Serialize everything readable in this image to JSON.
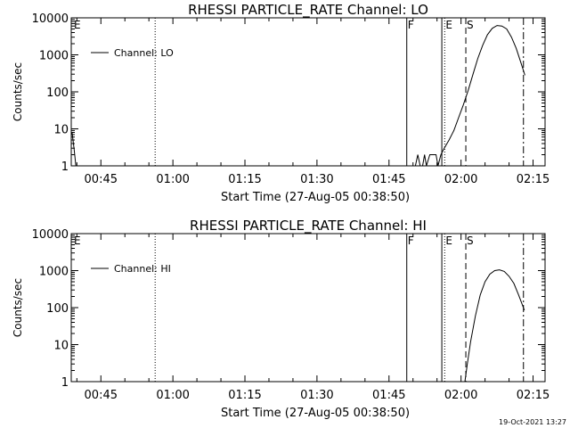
{
  "footer_timestamp": "19-Oct-2021 13:27",
  "chart_data": [
    {
      "type": "line",
      "title": "RHESSI PARTICLE_RATE Channel: LO",
      "xlabel": "Start Time (27-Aug-05 00:38:50)",
      "ylabel": "Counts/sec",
      "yscale": "log",
      "ylim": [
        1,
        10000
      ],
      "xlim_minutes": [
        38.83,
        137.5
      ],
      "x_ticks": [
        {
          "m": 45,
          "label": "00:45"
        },
        {
          "m": 60,
          "label": "01:00"
        },
        {
          "m": 75,
          "label": "01:15"
        },
        {
          "m": 90,
          "label": "01:30"
        },
        {
          "m": 105,
          "label": "01:45"
        },
        {
          "m": 120,
          "label": "02:00"
        },
        {
          "m": 135,
          "label": "02:15"
        }
      ],
      "y_ticks": [
        {
          "v": 1,
          "label": "1"
        },
        {
          "v": 10,
          "label": "10"
        },
        {
          "v": 100,
          "label": "100"
        },
        {
          "v": 1000,
          "label": "1000"
        },
        {
          "v": 10000,
          "label": "10000"
        }
      ],
      "legend": {
        "label": "Channel: LO",
        "position": "top-left"
      },
      "markers": [
        {
          "label": "E",
          "m": 39.2,
          "style": "none"
        },
        {
          "label": "",
          "m": 56.3,
          "style": "dotted"
        },
        {
          "label": "F",
          "m": 108.7,
          "style": "solid"
        },
        {
          "label": "",
          "m": 116.0,
          "style": "solid"
        },
        {
          "label": "E",
          "m": 116.6,
          "style": "dotted"
        },
        {
          "label": "S",
          "m": 121.0,
          "style": "dashed"
        },
        {
          "label": "",
          "m": 133.0,
          "style": "dashdot"
        }
      ],
      "series": [
        {
          "points": [
            [
              39.0,
              8
            ],
            [
              39.4,
              3
            ],
            [
              39.8,
              1
            ],
            [
              110.5,
              1
            ],
            [
              111.0,
              2
            ],
            [
              111.5,
              1
            ],
            [
              112.0,
              1
            ],
            [
              112.4,
              2
            ],
            [
              112.8,
              1
            ],
            [
              113.5,
              2
            ],
            [
              114.0,
              2
            ],
            [
              114.8,
              2
            ],
            [
              115.2,
              1
            ],
            [
              115.8,
              2
            ],
            [
              116.5,
              3
            ],
            [
              117.5,
              5
            ],
            [
              118.5,
              9
            ],
            [
              119.5,
              20
            ],
            [
              120.5,
              45
            ],
            [
              121.5,
              110
            ],
            [
              122.5,
              300
            ],
            [
              123.5,
              800
            ],
            [
              124.5,
              1800
            ],
            [
              125.5,
              3500
            ],
            [
              126.5,
              5200
            ],
            [
              127.5,
              6200
            ],
            [
              128.5,
              6000
            ],
            [
              129.5,
              5000
            ],
            [
              130.5,
              3000
            ],
            [
              131.5,
              1500
            ],
            [
              132.5,
              600
            ],
            [
              133.3,
              280
            ]
          ]
        }
      ]
    },
    {
      "type": "line",
      "title": "RHESSI PARTICLE_RATE Channel: HI",
      "xlabel": "Start Time (27-Aug-05 00:38:50)",
      "ylabel": "Counts/sec",
      "yscale": "log",
      "ylim": [
        1,
        10000
      ],
      "xlim_minutes": [
        38.83,
        137.5
      ],
      "x_ticks": [
        {
          "m": 45,
          "label": "00:45"
        },
        {
          "m": 60,
          "label": "01:00"
        },
        {
          "m": 75,
          "label": "01:15"
        },
        {
          "m": 90,
          "label": "01:30"
        },
        {
          "m": 105,
          "label": "01:45"
        },
        {
          "m": 120,
          "label": "02:00"
        },
        {
          "m": 135,
          "label": "02:15"
        }
      ],
      "y_ticks": [
        {
          "v": 1,
          "label": "1"
        },
        {
          "v": 10,
          "label": "10"
        },
        {
          "v": 100,
          "label": "100"
        },
        {
          "v": 1000,
          "label": "1000"
        },
        {
          "v": 10000,
          "label": "10000"
        }
      ],
      "legend": {
        "label": "Channel: HI",
        "position": "top-left"
      },
      "markers": [
        {
          "label": "E",
          "m": 39.2,
          "style": "none"
        },
        {
          "label": "",
          "m": 56.3,
          "style": "dotted"
        },
        {
          "label": "F",
          "m": 108.7,
          "style": "solid"
        },
        {
          "label": "",
          "m": 116.0,
          "style": "solid"
        },
        {
          "label": "E",
          "m": 116.6,
          "style": "dotted"
        },
        {
          "label": "S",
          "m": 121.0,
          "style": "dashed"
        },
        {
          "label": "",
          "m": 133.0,
          "style": "dashdot"
        }
      ],
      "series": [
        {
          "points": [
            [
              120.8,
              1
            ],
            [
              121.3,
              3
            ],
            [
              122.0,
              12
            ],
            [
              123.0,
              60
            ],
            [
              124.0,
              220
            ],
            [
              125.0,
              500
            ],
            [
              126.0,
              800
            ],
            [
              127.0,
              1000
            ],
            [
              128.0,
              1050
            ],
            [
              129.0,
              950
            ],
            [
              130.0,
              700
            ],
            [
              131.0,
              450
            ],
            [
              132.0,
              220
            ],
            [
              133.2,
              85
            ]
          ]
        }
      ]
    }
  ]
}
